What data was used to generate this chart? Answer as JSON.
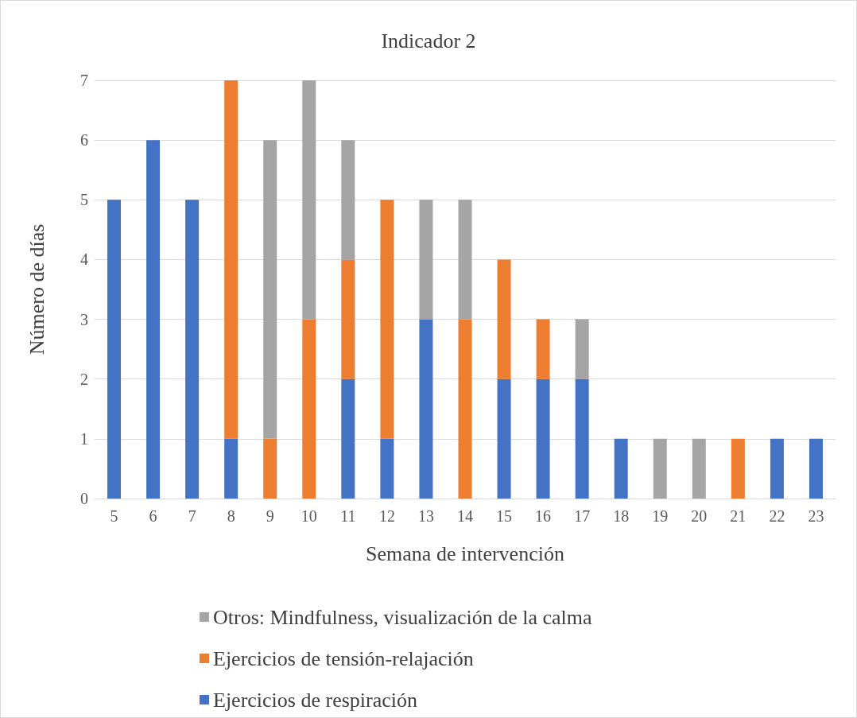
{
  "chart_data": {
    "type": "bar",
    "title": "Indicador 2",
    "xlabel": "Semana de intervención",
    "ylabel": "Número de días",
    "categories": [
      "5",
      "6",
      "7",
      "8",
      "9",
      "10",
      "11",
      "12",
      "13",
      "14",
      "15",
      "16",
      "17",
      "18",
      "19",
      "20",
      "21",
      "22",
      "23"
    ],
    "stacked": true,
    "ylim": [
      0,
      7
    ],
    "yticks": [
      0,
      1,
      2,
      3,
      4,
      5,
      6,
      7
    ],
    "grid": "y",
    "legend": "bottom",
    "series": [
      {
        "name": "Ejercicios de respiración",
        "color": "#4472c4",
        "values": [
          5,
          6,
          5,
          1,
          0,
          0,
          2,
          1,
          3,
          0,
          2,
          2,
          2,
          1,
          0,
          0,
          0,
          1,
          1
        ]
      },
      {
        "name": "Ejercicios de tensión-relajación",
        "color": "#ed7d31",
        "values": [
          0,
          0,
          0,
          6,
          1,
          3,
          2,
          4,
          0,
          3,
          2,
          1,
          0,
          0,
          0,
          0,
          1,
          0,
          0
        ]
      },
      {
        "name": "Otros: Mindfulness, visualización de la calma",
        "color": "#a5a5a5",
        "values": [
          0,
          0,
          0,
          0,
          5,
          4,
          2,
          0,
          2,
          2,
          0,
          0,
          1,
          0,
          1,
          1,
          0,
          0,
          0
        ]
      }
    ]
  }
}
